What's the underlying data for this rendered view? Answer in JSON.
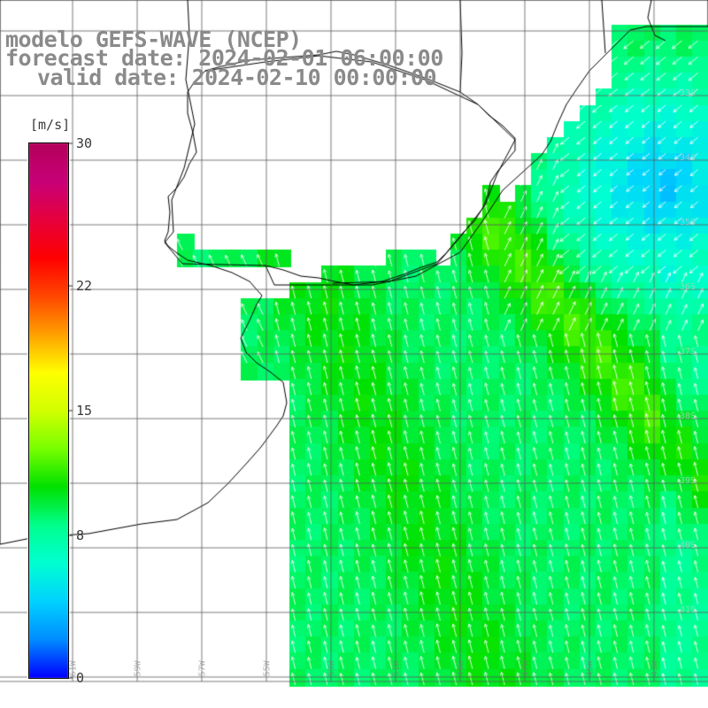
{
  "title": {
    "line1": "modelo GEFS-WAVE (NCEP)",
    "line2": "forecast date: 2024-02-01 06:00:00",
    "line3": "valid date: 2024-02-10 00:00:00"
  },
  "colorbar": {
    "unit": "[m/s]",
    "ticks": [
      "30",
      "22",
      "15",
      "8",
      "0"
    ],
    "tick_values": [
      30,
      22,
      15,
      8,
      0
    ],
    "min": 0,
    "max": 30,
    "colors": [
      "#0000ff",
      "#008cff",
      "#00d2ff",
      "#00ffd2",
      "#00ff8c",
      "#00e100",
      "#78ff00",
      "#d2ff00",
      "#ffff00",
      "#ffa000",
      "#ff4600",
      "#ff0000",
      "#e6003c",
      "#c80078",
      "#b4005a"
    ]
  },
  "map": {
    "variable": "wind speed and direction",
    "longitude_labels": [
      "61W",
      "59W",
      "57W",
      "55W",
      "53W",
      "51W",
      "49W",
      "47W",
      "45W",
      "43W"
    ],
    "latitude_labels": [
      "33S",
      "34S",
      "35S",
      "36S",
      "37S",
      "38S",
      "39S",
      "40S",
      "41S"
    ],
    "grid_color": "#555555",
    "land_color": "#ffffff",
    "coast_color": "#000000"
  }
}
